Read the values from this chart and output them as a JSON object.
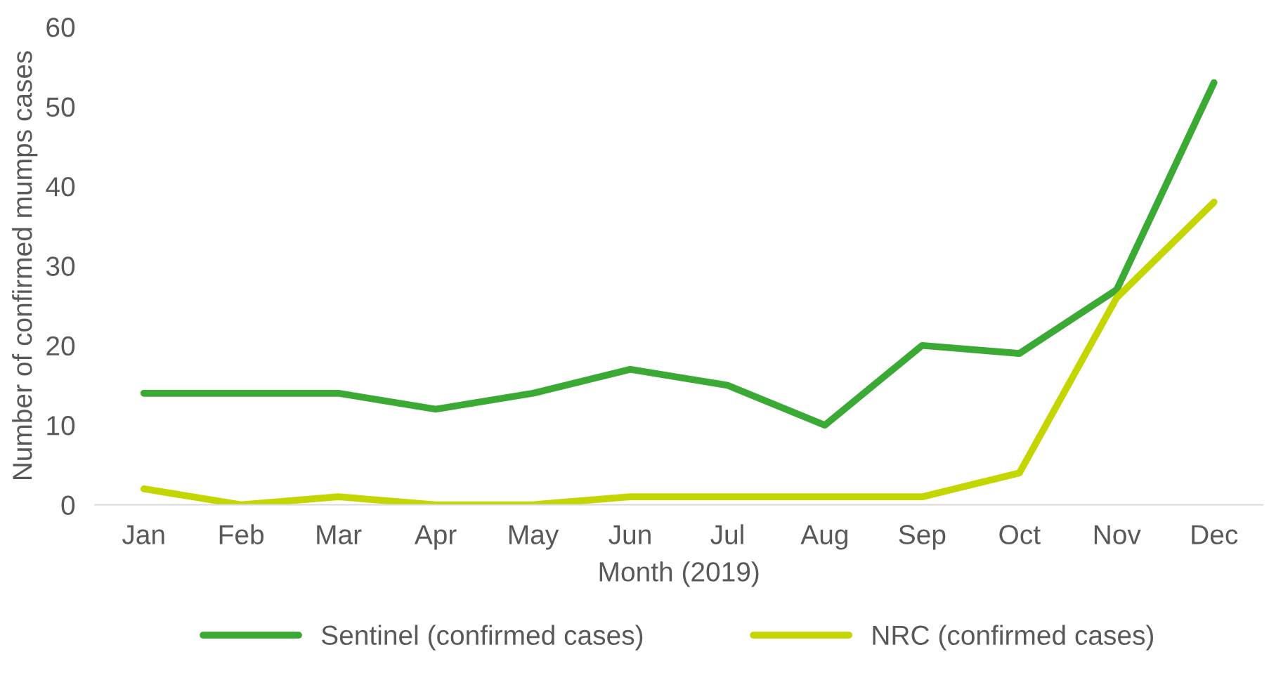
{
  "chart_data": {
    "type": "line",
    "xlabel": "Month (2019)",
    "ylabel": "Number of confirmed mumps cases",
    "categories": [
      "Jan",
      "Feb",
      "Mar",
      "Apr",
      "May",
      "Jun",
      "Jul",
      "Aug",
      "Sep",
      "Oct",
      "Nov",
      "Dec"
    ],
    "series": [
      {
        "name": "Sentinel (confirmed cases)",
        "color": "#3aaa35",
        "values": [
          14,
          14,
          14,
          12,
          14,
          17,
          15,
          10,
          20,
          19,
          27,
          53
        ]
      },
      {
        "name": "NRC (confirmed cases)",
        "color": "#c3d600",
        "values": [
          2,
          0,
          1,
          0,
          0,
          1,
          1,
          1,
          1,
          4,
          26,
          38
        ]
      }
    ],
    "ylim": [
      0,
      60
    ],
    "yticks": [
      0,
      10,
      20,
      30,
      40,
      50,
      60
    ],
    "grid": false,
    "legend": "bottom",
    "marker": "none",
    "line_style": "solid"
  }
}
